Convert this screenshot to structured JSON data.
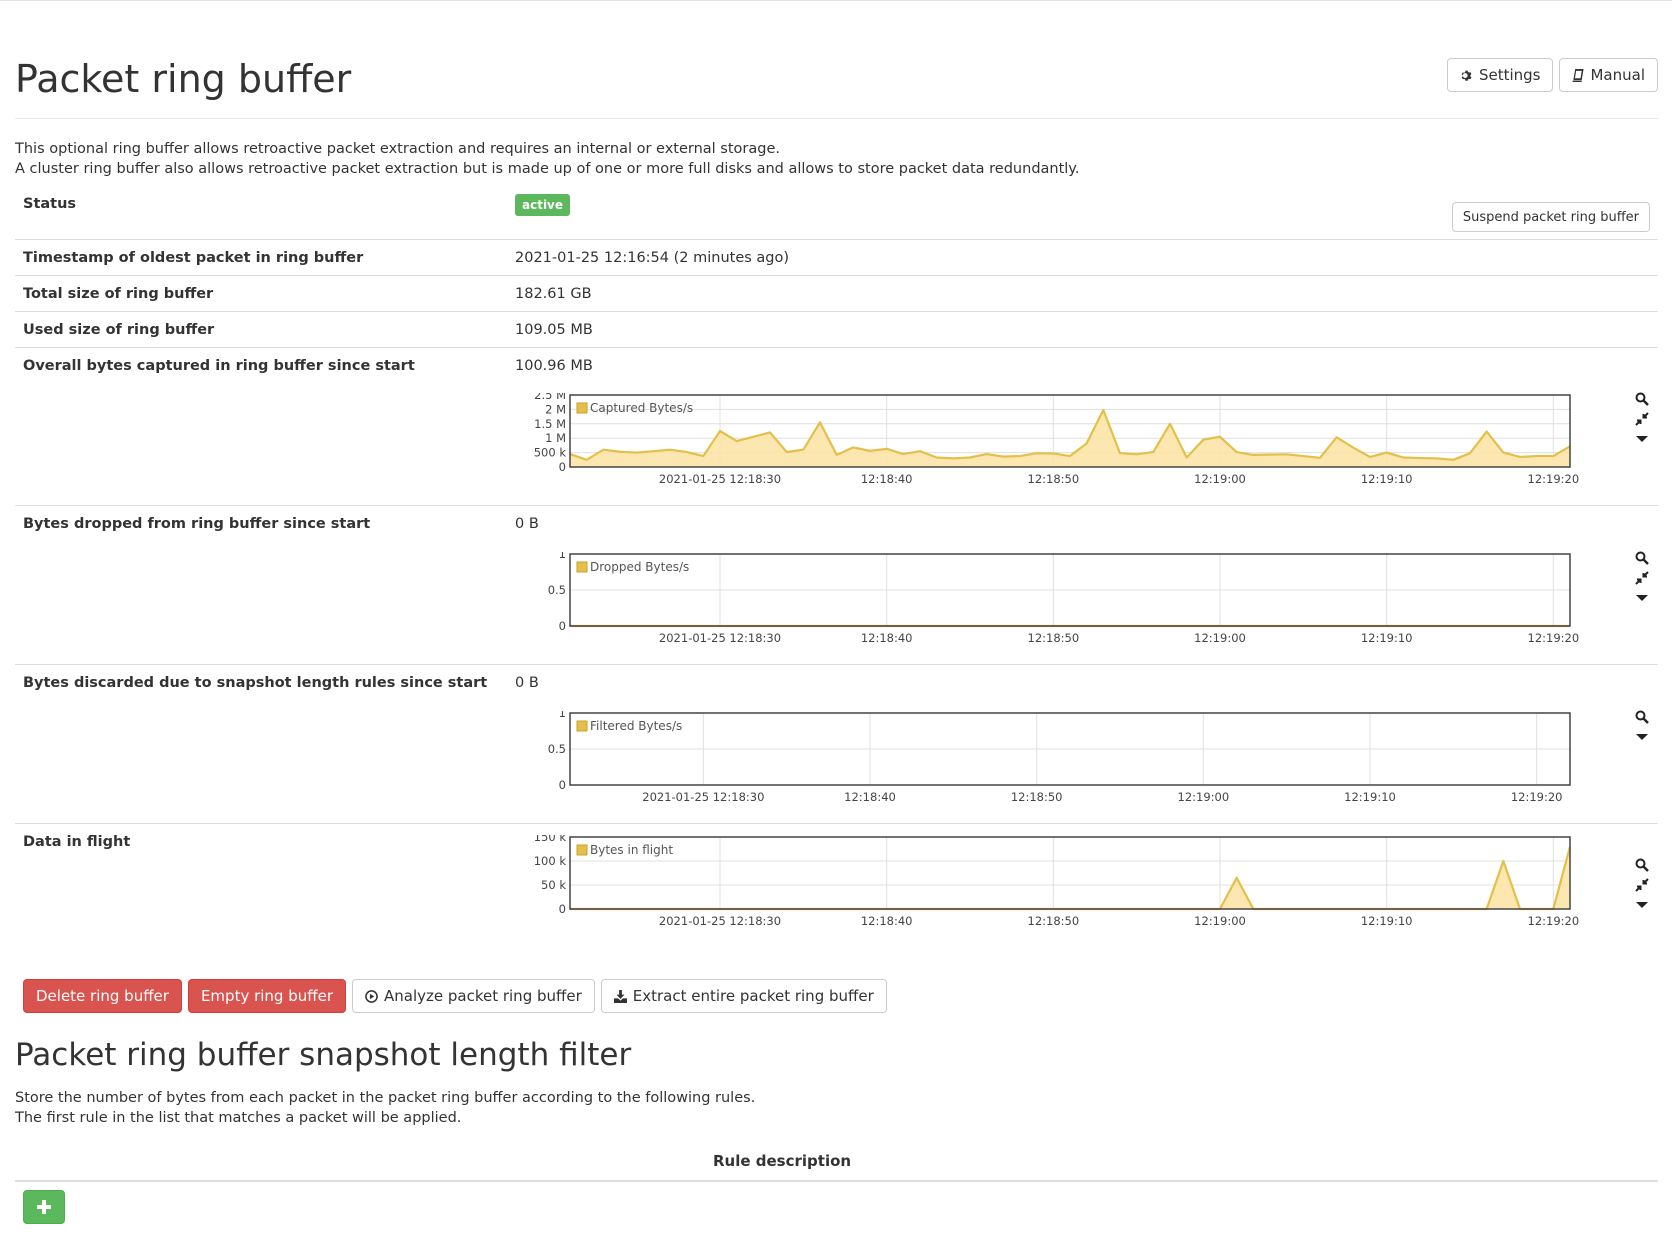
{
  "page": {
    "title": "Packet ring buffer",
    "settings_label": "Settings",
    "manual_label": "Manual",
    "intro_line1": "This optional ring buffer allows retroactive packet extraction and requires an internal or external storage.",
    "intro_line2": "A cluster ring buffer also allows retroactive packet extraction but is made up of one or more full disks and allows to store packet data redundantly."
  },
  "status": {
    "label": "Status",
    "badge": "active",
    "badge_color": "#5cb85c",
    "suspend_label": "Suspend packet ring buffer"
  },
  "details": [
    {
      "label": "Timestamp of oldest packet in ring buffer",
      "value": "2021-01-25 12:16:54 (2 minutes ago)"
    },
    {
      "label": "Total size of ring buffer",
      "value": "182.61 GB"
    },
    {
      "label": "Used size of ring buffer",
      "value": "109.05 MB"
    },
    {
      "label": "Overall bytes captured in ring buffer since start",
      "value": "100.96 MB"
    },
    {
      "label": "Bytes dropped from ring buffer since start",
      "value": "0 B"
    },
    {
      "label": "Bytes discarded due to snapshot length rules since start",
      "value": "0 B"
    },
    {
      "label": "Data in flight",
      "value": ""
    }
  ],
  "colors": {
    "series_stroke": "#e4c04a",
    "series_fill": "#fbe3a3",
    "danger": "#d9534f",
    "success": "#5cb85c"
  },
  "icons": [
    "gear-icon",
    "book-icon",
    "search-icon",
    "compress-icon",
    "caret-down-icon",
    "play-circle-icon",
    "download-icon",
    "plus-icon"
  ],
  "chart_data": [
    {
      "type": "area",
      "legend": "Captured Bytes/s",
      "ylim": [
        0,
        2500000
      ],
      "yticks": [
        [
          0,
          "0"
        ],
        [
          500000,
          "500 k"
        ],
        [
          1000000,
          "1 M"
        ],
        [
          1500000,
          "1.5 M"
        ],
        [
          2000000,
          "2 M"
        ],
        [
          2500000,
          "2.5 M"
        ]
      ],
      "xlim": [
        0,
        60
      ],
      "xticks": [
        [
          9,
          "2021-01-25 12:18:30"
        ],
        [
          19,
          "12:18:40"
        ],
        [
          29,
          "12:18:50"
        ],
        [
          39,
          "12:19:00"
        ],
        [
          49,
          "12:19:10"
        ],
        [
          59,
          "12:19:20"
        ]
      ],
      "grid": true,
      "series": [
        {
          "values": [
            450000,
            250000,
            600000,
            530000,
            500000,
            550000,
            600000,
            520000,
            380000,
            1250000,
            900000,
            1050000,
            1200000,
            520000,
            600000,
            1550000,
            420000,
            680000,
            560000,
            630000,
            450000,
            550000,
            330000,
            300000,
            330000,
            450000,
            360000,
            380000,
            480000,
            470000,
            380000,
            820000,
            1980000,
            480000,
            440000,
            520000,
            1500000,
            330000,
            950000,
            1050000,
            520000,
            420000,
            430000,
            440000,
            380000,
            320000,
            1030000,
            670000,
            350000,
            500000,
            330000,
            310000,
            300000,
            250000,
            480000,
            1230000,
            500000,
            350000,
            380000,
            380000,
            720000
          ]
        }
      ]
    },
    {
      "type": "area",
      "legend": "Dropped Bytes/s",
      "ylim": [
        0,
        1
      ],
      "yticks": [
        [
          0,
          "0"
        ],
        [
          0.5,
          "0.5"
        ],
        [
          1,
          "1"
        ]
      ],
      "xlim": [
        0,
        60
      ],
      "xticks": [
        [
          9,
          "2021-01-25 12:18:30"
        ],
        [
          19,
          "12:18:40"
        ],
        [
          29,
          "12:18:50"
        ],
        [
          39,
          "12:19:00"
        ],
        [
          49,
          "12:19:10"
        ],
        [
          59,
          "12:19:20"
        ]
      ],
      "grid": true,
      "series": [
        {
          "values": [
            0,
            0,
            0,
            0,
            0,
            0,
            0,
            0,
            0,
            0,
            0,
            0,
            0,
            0,
            0,
            0,
            0,
            0,
            0,
            0,
            0,
            0,
            0,
            0,
            0,
            0,
            0,
            0,
            0,
            0,
            0,
            0,
            0,
            0,
            0,
            0,
            0,
            0,
            0,
            0,
            0,
            0,
            0,
            0,
            0,
            0,
            0,
            0,
            0,
            0,
            0,
            0,
            0,
            0,
            0,
            0,
            0,
            0,
            0,
            0,
            0
          ]
        }
      ]
    },
    {
      "type": "area",
      "legend": "Filtered Bytes/s",
      "ylim": [
        0,
        1
      ],
      "yticks": [
        [
          0,
          "0"
        ],
        [
          0.5,
          "0.5"
        ],
        [
          1,
          "1"
        ]
      ],
      "xlim": [
        0,
        60
      ],
      "xticks": [
        [
          8,
          "2021-01-25 12:18:30"
        ],
        [
          18,
          "12:18:40"
        ],
        [
          28,
          "12:18:50"
        ],
        [
          38,
          "12:19:00"
        ],
        [
          48,
          "12:19:10"
        ],
        [
          58,
          "12:19:20"
        ]
      ],
      "grid": true,
      "series": []
    },
    {
      "type": "area",
      "legend": "Bytes in flight",
      "ylim": [
        0,
        150000
      ],
      "yticks": [
        [
          0,
          "0"
        ],
        [
          50000,
          "50 k"
        ],
        [
          100000,
          "100 k"
        ],
        [
          150000,
          "150 k"
        ]
      ],
      "xlim": [
        0,
        60
      ],
      "xticks": [
        [
          9,
          "2021-01-25 12:18:30"
        ],
        [
          19,
          "12:18:40"
        ],
        [
          29,
          "12:18:50"
        ],
        [
          39,
          "12:19:00"
        ],
        [
          49,
          "12:19:10"
        ],
        [
          59,
          "12:19:20"
        ]
      ],
      "grid": true,
      "series": [
        {
          "values": [
            0,
            0,
            0,
            0,
            0,
            0,
            0,
            0,
            0,
            0,
            0,
            0,
            0,
            0,
            0,
            0,
            0,
            0,
            0,
            0,
            0,
            0,
            0,
            0,
            0,
            0,
            0,
            0,
            0,
            0,
            0,
            0,
            0,
            0,
            0,
            0,
            0,
            0,
            0,
            0,
            65000,
            0,
            0,
            0,
            0,
            0,
            0,
            0,
            0,
            0,
            0,
            0,
            0,
            0,
            0,
            0,
            100000,
            0,
            0,
            0,
            130000
          ]
        }
      ]
    }
  ],
  "actions": {
    "delete_label": "Delete ring buffer",
    "empty_label": "Empty ring buffer",
    "analyze_label": "Analyze packet ring buffer",
    "extract_label": "Extract entire packet ring buffer"
  },
  "snapshot": {
    "title": "Packet ring buffer snapshot length filter",
    "line1": "Store the number of bytes from each packet in the packet ring buffer according to the following rules.",
    "line2": "The first rule in the list that matches a packet will be applied.",
    "column_header": "Rule description"
  }
}
